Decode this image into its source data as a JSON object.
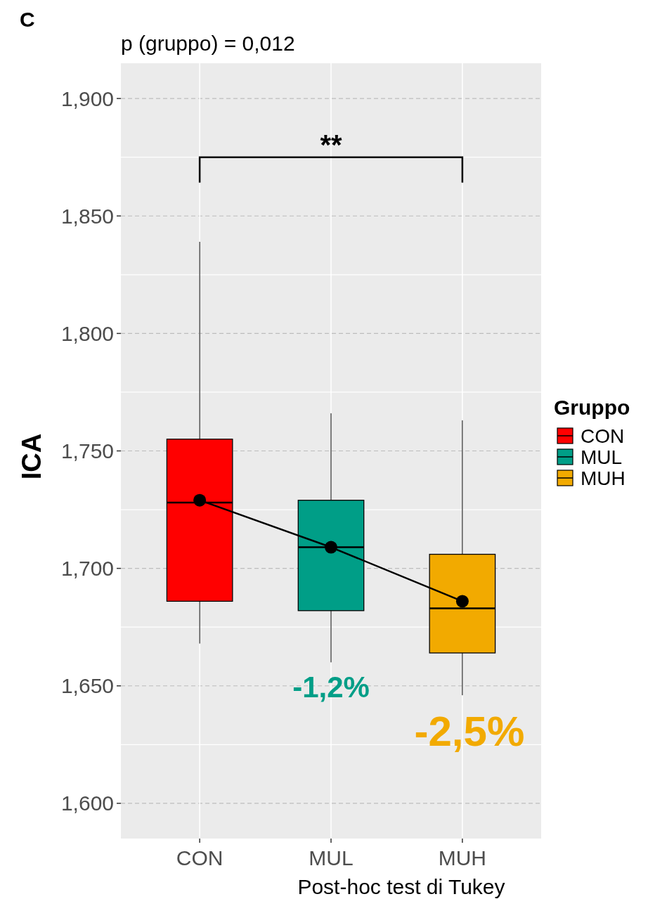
{
  "chart_data": {
    "type": "box",
    "title": "p (gruppo) = 0,012",
    "xlabel": "Post-hoc test di Tukey",
    "ylabel": "ICA",
    "legend_title": "Gruppo",
    "categories": [
      "CON",
      "MUL",
      "MUH"
    ],
    "series": [
      {
        "name": "CON",
        "color": "#ff0000",
        "boxes": [
          {
            "low": 1.668,
            "q1": 1.686,
            "median": 1.728,
            "q3": 1.755,
            "high": 1.839
          },
          null,
          null
        ]
      },
      {
        "name": "MUL",
        "color": "#009e87",
        "boxes": [
          null,
          {
            "low": 1.66,
            "q1": 1.682,
            "median": 1.709,
            "q3": 1.729,
            "high": 1.766
          },
          null
        ]
      },
      {
        "name": "MUH",
        "color": "#f2aa00",
        "boxes": [
          null,
          null,
          {
            "low": 1.646,
            "q1": 1.664,
            "median": 1.683,
            "q3": 1.706,
            "high": 1.763
          }
        ]
      },
      {
        "type": "line",
        "x": [
          "CON",
          "MUL",
          "MUH"
        ],
        "values": [
          1.729,
          1.709,
          1.686
        ],
        "color": "#000000",
        "marker": "circle"
      }
    ],
    "ylim": [
      1.585,
      1.915
    ],
    "yticks": [
      {
        "value": 1.6,
        "label": "1,600"
      },
      {
        "value": 1.65,
        "label": "1,650"
      },
      {
        "value": 1.7,
        "label": "1,700"
      },
      {
        "value": 1.75,
        "label": "1,750"
      },
      {
        "value": 1.8,
        "label": "1,800"
      },
      {
        "value": 1.85,
        "label": "1,850"
      },
      {
        "value": 1.9,
        "label": "1,900"
      }
    ],
    "grid": true,
    "legend": "right",
    "annotations": [
      "C",
      "**",
      "-1,2%",
      "-2,5%"
    ]
  }
}
